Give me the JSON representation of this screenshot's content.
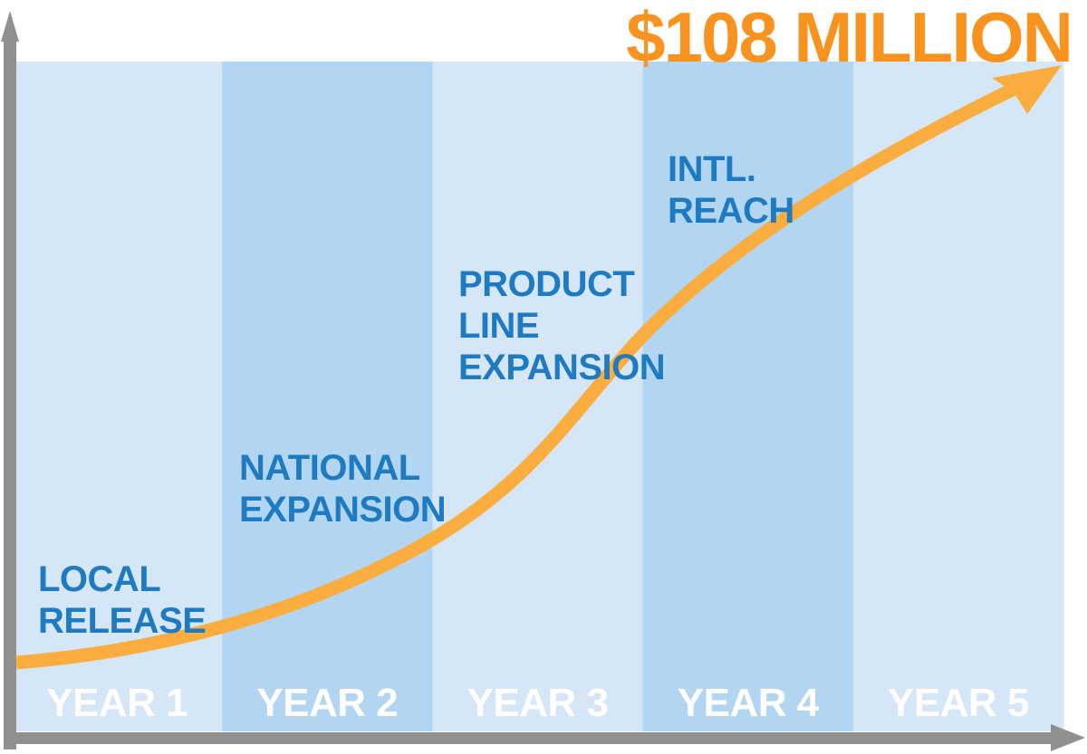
{
  "colors": {
    "band_light": "#d5e6f6",
    "band_dark": "#b2d6f1",
    "axis": "#8e9092",
    "curve": "#fbad3f",
    "label_blue": "#1f7bc1",
    "total_orange": "#f7931e"
  },
  "total_label": "$108 MILLION",
  "chart_data": {
    "type": "line",
    "categories": [
      "YEAR 1",
      "YEAR 2",
      "YEAR 3",
      "YEAR 4",
      "YEAR 5"
    ],
    "milestones": [
      {
        "lines": [
          "LOCAL",
          "RELEASE"
        ]
      },
      {
        "lines": [
          "NATIONAL",
          "EXPANSION"
        ]
      },
      {
        "lines": [
          "PRODUCT",
          "LINE",
          "EXPANSION"
        ]
      },
      {
        "lines": [
          "INTL.",
          "REACH"
        ]
      }
    ],
    "end_value_label": "$108 MILLION",
    "axis_ticks_shown": false,
    "grid": false
  }
}
